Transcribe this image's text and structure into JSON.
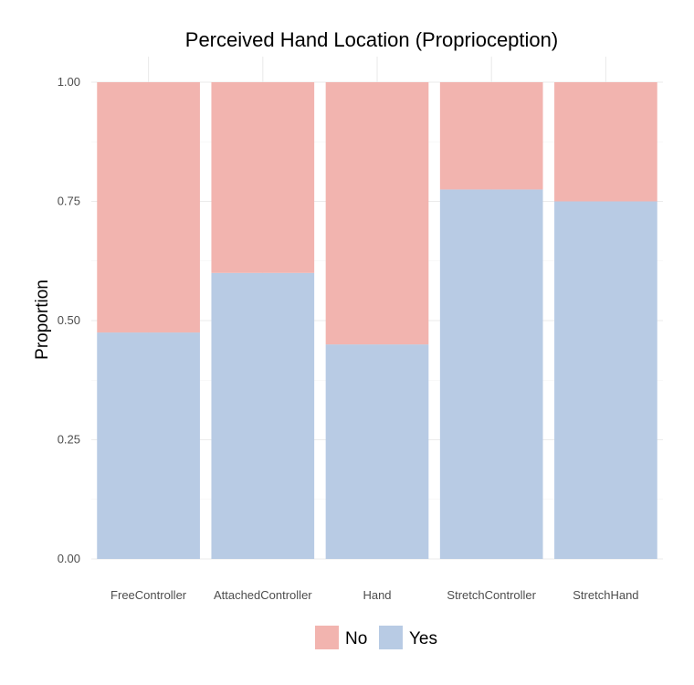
{
  "chart_data": {
    "type": "bar",
    "stacked": true,
    "title": "Perceived Hand Location (Proprioception)",
    "xlabel": "",
    "ylabel": "Proportion",
    "ylim": [
      0,
      1
    ],
    "yticks": [
      "0.00",
      "0.25",
      "0.50",
      "0.75",
      "1.00"
    ],
    "ytick_values": [
      0,
      0.25,
      0.5,
      0.75,
      1.0
    ],
    "categories": [
      "FreeController",
      "AttachedController",
      "Hand",
      "StretchController",
      "StretchHand"
    ],
    "series": [
      {
        "name": "Yes",
        "color": "#b8cbe4",
        "values": [
          0.475,
          0.6,
          0.45,
          0.775,
          0.75
        ]
      },
      {
        "name": "No",
        "color": "#f2b4af",
        "values": [
          0.525,
          0.4,
          0.55,
          0.225,
          0.25
        ]
      }
    ],
    "legend": {
      "position": "bottom",
      "items": [
        {
          "label": "No",
          "color": "#f2b4af"
        },
        {
          "label": "Yes",
          "color": "#b8cbe4"
        }
      ]
    },
    "grid": true
  }
}
